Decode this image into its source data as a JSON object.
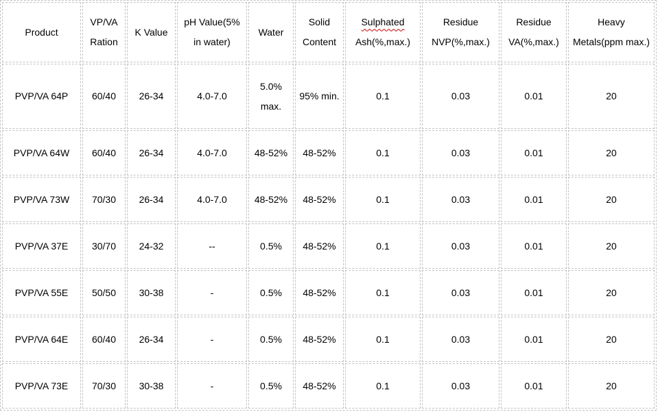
{
  "table": {
    "columns": [
      {
        "key": "product",
        "lines": [
          "Product"
        ]
      },
      {
        "key": "vp-va-ration",
        "lines": [
          "VP/VA",
          "Ration"
        ]
      },
      {
        "key": "k-value",
        "lines": [
          "K Value"
        ]
      },
      {
        "key": "ph-value",
        "lines": [
          "pH Value(5%",
          "in water)"
        ]
      },
      {
        "key": "water",
        "lines": [
          "Water"
        ]
      },
      {
        "key": "solid-content",
        "lines": [
          "Solid",
          "Content"
        ]
      },
      {
        "key": "sulphated-ash",
        "lines": [
          "Sulphated",
          "Ash(%,max.)"
        ],
        "misspelled_line": 0
      },
      {
        "key": "residue-nvp",
        "lines": [
          "Residue",
          "NVP(%,max.)"
        ]
      },
      {
        "key": "residue-va",
        "lines": [
          "Residue",
          "VA(%,max.)"
        ]
      },
      {
        "key": "heavy-metals",
        "lines": [
          "Heavy",
          "Metals(ppm max.)"
        ]
      }
    ],
    "rows": [
      {
        "cells": [
          "PVP/VA 64P",
          "60/40",
          "26-34",
          "4.0-7.0",
          "5.0%\nmax.",
          "95% min.",
          "0.1",
          "0.03",
          "0.01",
          "20"
        ]
      },
      {
        "cells": [
          "PVP/VA 64W",
          "60/40",
          "26-34",
          "4.0-7.0",
          "48-52%",
          "48-52%",
          "0.1",
          "0.03",
          "0.01",
          "20"
        ]
      },
      {
        "cells": [
          "PVP/VA 73W",
          "70/30",
          "26-34",
          "4.0-7.0",
          "48-52%",
          "48-52%",
          "0.1",
          "0.03",
          "0.01",
          "20"
        ]
      },
      {
        "cells": [
          "PVP/VA 37E",
          "30/70",
          "24-32",
          "--",
          "0.5%",
          "48-52%",
          "0.1",
          "0.03",
          "0.01",
          "20"
        ]
      },
      {
        "cells": [
          "PVP/VA 55E",
          "50/50",
          "30-38",
          "-",
          "0.5%",
          "48-52%",
          "0.1",
          "0.03",
          "0.01",
          "20"
        ]
      },
      {
        "cells": [
          "PVP/VA 64E",
          "60/40",
          "26-34",
          "-",
          "0.5%",
          "48-52%",
          "0.1",
          "0.03",
          "0.01",
          "20"
        ]
      },
      {
        "cells": [
          "PVP/VA 73E",
          "70/30",
          "30-38",
          "-",
          "0.5%",
          "48-52%",
          "0.1",
          "0.03",
          "0.01",
          "20"
        ]
      }
    ]
  },
  "styles": {
    "border_color": "#c2c2c2",
    "text_color": "#000000",
    "spellcheck_underline_color": "#cc0000",
    "background": "#ffffff"
  }
}
